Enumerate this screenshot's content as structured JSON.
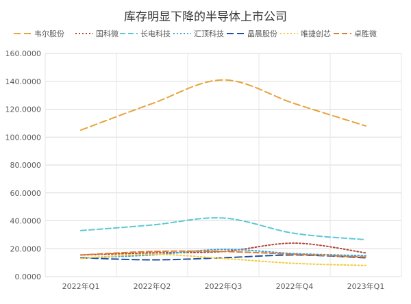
{
  "chart_data": {
    "type": "line",
    "title": "库存明显下降的半导体上市公司",
    "categories": [
      "2022年Q1",
      "2022年Q2",
      "2022年Q3",
      "2022年Q4",
      "2023年Q1"
    ],
    "ylim": [
      0,
      160
    ],
    "ytick_values": [
      0,
      20,
      40,
      60,
      80,
      100,
      120,
      140,
      160
    ],
    "ytick_labels": [
      "0.0000",
      "20.0000",
      "40.0000",
      "60.0000",
      "80.0000",
      "100.0000",
      "120.0000",
      "140.0000",
      "160.0000"
    ],
    "grid": true,
    "legend_position": "top",
    "series": [
      {
        "name": "韦尔股份",
        "color": "#E8A33A",
        "dash": "10 5",
        "values": [
          105,
          124,
          141,
          124,
          108
        ]
      },
      {
        "name": "国科微",
        "color": "#B0453A",
        "dash": "2 3",
        "values": [
          15.5,
          17,
          18,
          24,
          17
        ]
      },
      {
        "name": "长电科技",
        "color": "#5BC8D4",
        "dash": "8 4",
        "values": [
          33,
          37,
          42,
          31,
          26.5
        ]
      },
      {
        "name": "汇顶科技",
        "color": "#3BA6D6",
        "dash": "2 3",
        "values": [
          13.5,
          15.5,
          19.5,
          16.5,
          15
        ]
      },
      {
        "name": "晶晨股份",
        "color": "#1F4FA1",
        "dash": "10 5",
        "values": [
          13.5,
          12,
          13.5,
          15.5,
          13.5
        ]
      },
      {
        "name": "唯捷创芯",
        "color": "#F2CB3A",
        "dash": "2 3",
        "values": [
          13,
          16,
          13,
          9.5,
          8
        ]
      },
      {
        "name": "卓胜微",
        "color": "#E07A2E",
        "dash": "8 4",
        "values": [
          15.5,
          18,
          18,
          16,
          14
        ]
      }
    ]
  }
}
